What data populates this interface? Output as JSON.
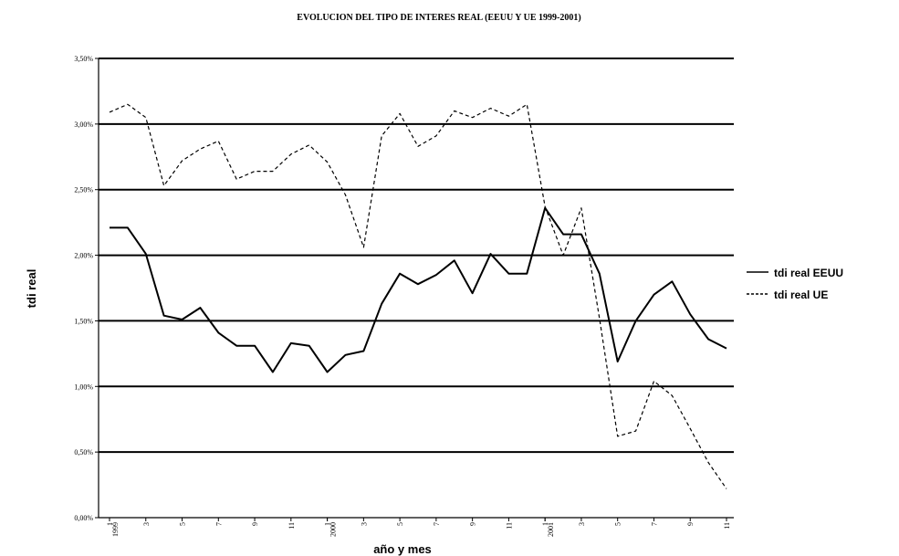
{
  "chart_data": {
    "type": "line",
    "title": "EVOLUCION DEL TIPO DE INTERES REAL (EEUU Y UE 1999-2001)",
    "xlabel": "año y mes",
    "ylabel": "tdi real",
    "ylim": [
      0,
      0.035
    ],
    "y_ticks": [
      "0,00%",
      "0,50%",
      "1,00%",
      "1,50%",
      "2,00%",
      "2,50%",
      "3,00%",
      "3,50%"
    ],
    "x_ticks": [
      "1",
      "1999",
      "3",
      "5",
      "7",
      "9",
      "11",
      "1",
      "2000",
      "3",
      "5",
      "7",
      "9",
      "11",
      "1",
      "2001",
      "3",
      "5",
      "7",
      "9",
      "11"
    ],
    "x": [
      "1999-1",
      "1999-2",
      "1999-3",
      "1999-4",
      "1999-5",
      "1999-6",
      "1999-7",
      "1999-8",
      "1999-9",
      "1999-10",
      "1999-11",
      "1999-12",
      "2000-1",
      "2000-2",
      "2000-3",
      "2000-4",
      "2000-5",
      "2000-6",
      "2000-7",
      "2000-8",
      "2000-9",
      "2000-10",
      "2000-11",
      "2000-12",
      "2001-1",
      "2001-2",
      "2001-3",
      "2001-4",
      "2001-5",
      "2001-6",
      "2001-7",
      "2001-8",
      "2001-9",
      "2001-10",
      "2001-11"
    ],
    "grid": true,
    "legend_position": "right",
    "series": [
      {
        "name": "tdi real EEUU",
        "style": "solid",
        "color": "#000000",
        "values": [
          0.0221,
          0.0221,
          0.0201,
          0.0154,
          0.0151,
          0.016,
          0.0141,
          0.0131,
          0.0131,
          0.0111,
          0.0133,
          0.0131,
          0.0111,
          0.0124,
          0.0127,
          0.0163,
          0.0186,
          0.0178,
          0.0185,
          0.0196,
          0.0171,
          0.0201,
          0.0186,
          0.0186,
          0.0236,
          0.0216,
          0.0216,
          0.0186,
          0.0119,
          0.015,
          0.017,
          0.018,
          0.0155,
          0.0136,
          0.0129
        ]
      },
      {
        "name": "tdi real UE",
        "style": "dashed",
        "color": "#000000",
        "values": [
          0.0309,
          0.0315,
          0.0305,
          0.0253,
          0.0272,
          0.0281,
          0.0287,
          0.0258,
          0.0264,
          0.0264,
          0.0277,
          0.0284,
          0.0271,
          0.0246,
          0.0206,
          0.0291,
          0.0308,
          0.0283,
          0.0291,
          0.031,
          0.0305,
          0.0312,
          0.0306,
          0.0315,
          0.0237,
          0.02,
          0.0236,
          0.0152,
          0.0062,
          0.0066,
          0.0104,
          0.0093,
          0.0068,
          0.0042,
          0.0022
        ]
      }
    ]
  }
}
